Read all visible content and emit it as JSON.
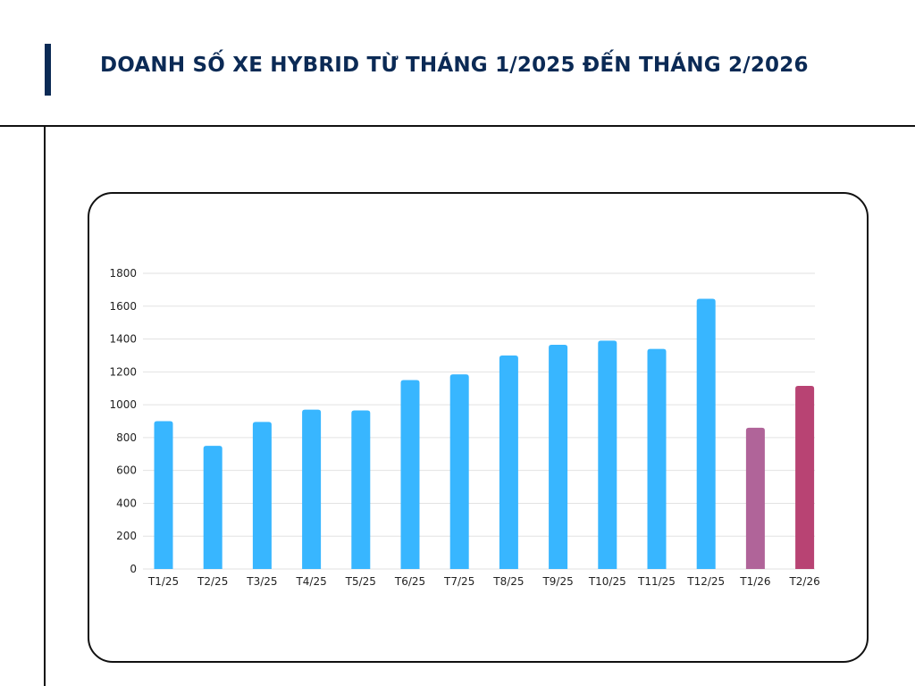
{
  "title": "DOANH SỐ XE HYBRID TỪ THÁNG 1/2025 ĐẾN THÁNG 2/2026",
  "chart_data": {
    "type": "bar",
    "title": "DOANH SỐ XE HYBRID TỪ THÁNG 1/2025 ĐẾN THÁNG 2/2026",
    "categories": [
      "T1/25",
      "T2/25",
      "T3/25",
      "T4/25",
      "T5/25",
      "T6/25",
      "T7/25",
      "T8/25",
      "T9/25",
      "T10/25",
      "T11/25",
      "T12/25",
      "T1/26",
      "T2/26"
    ],
    "values": [
      900,
      750,
      895,
      970,
      965,
      1150,
      1185,
      1300,
      1365,
      1390,
      1340,
      1645,
      860,
      1115
    ],
    "colors": [
      "#38b6ff",
      "#38b6ff",
      "#38b6ff",
      "#38b6ff",
      "#38b6ff",
      "#38b6ff",
      "#38b6ff",
      "#38b6ff",
      "#38b6ff",
      "#38b6ff",
      "#38b6ff",
      "#38b6ff",
      "#b06499",
      "#b84373"
    ],
    "ylim": [
      0,
      1800
    ],
    "yticks": [
      0,
      200,
      400,
      600,
      800,
      1000,
      1200,
      1400,
      1600,
      1800
    ],
    "grid": true,
    "xlabel": "",
    "ylabel": ""
  }
}
